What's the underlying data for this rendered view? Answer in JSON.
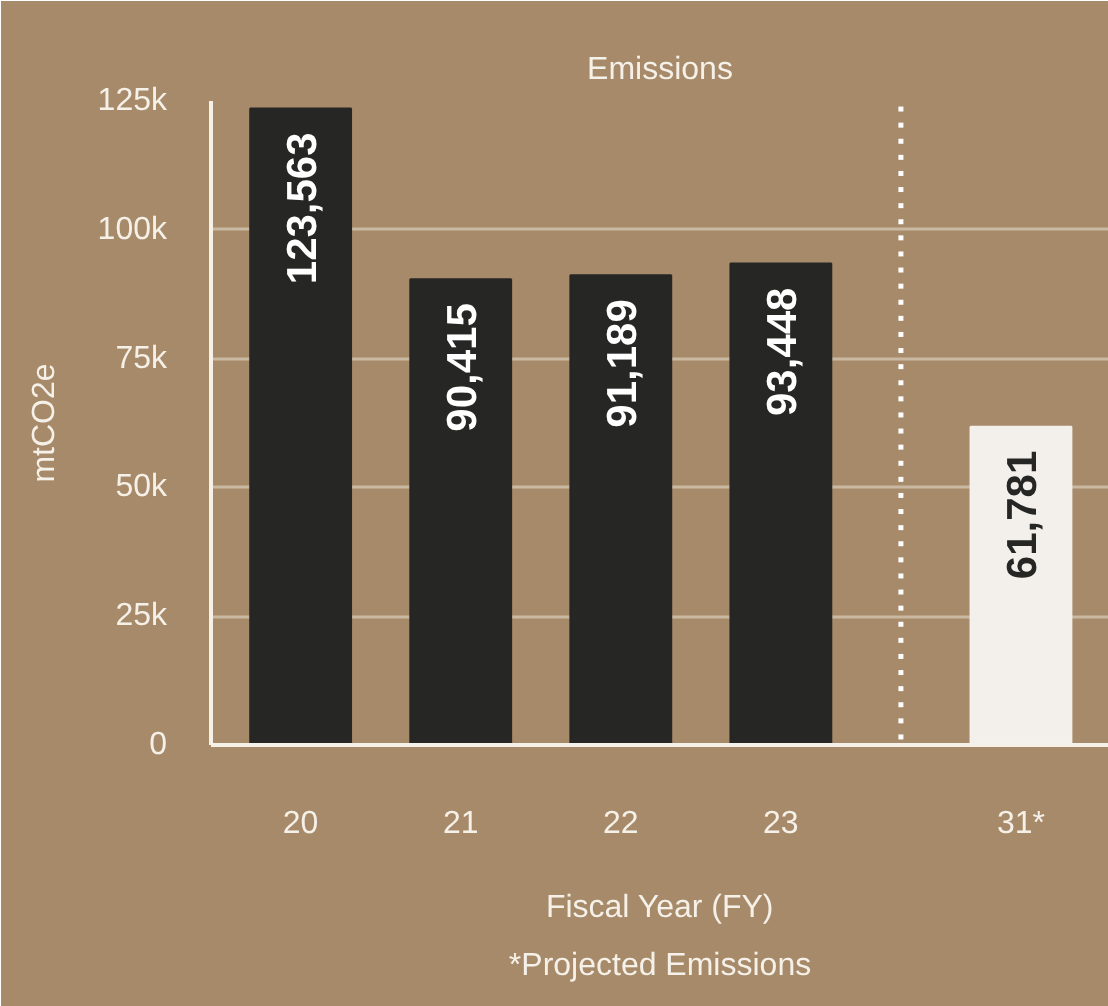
{
  "chart_data": {
    "type": "bar",
    "title": "Emissions",
    "xlabel": "Fiscal Year (FY)",
    "ylabel": "mtCO2e",
    "categories": [
      "20",
      "21",
      "22",
      "23",
      "31*"
    ],
    "values": [
      123563,
      90415,
      91189,
      93448,
      61781
    ],
    "value_labels": [
      "123,563",
      "90,415",
      "91,189",
      "93,448",
      "61,781"
    ],
    "colors": [
      "#262624",
      "#262624",
      "#262624",
      "#262624",
      "#f3f0ec"
    ],
    "ylim": [
      0,
      125000
    ],
    "yticks": [
      0,
      {
        "value": 25000,
        "label": "25k"
      },
      {
        "value": 50000,
        "label": "50k"
      },
      {
        "value": 75000,
        "label": "75k"
      },
      {
        "value": 100000,
        "label": "100k"
      },
      {
        "value": 125000,
        "label": "125k"
      }
    ],
    "grid": "y",
    "annotations": [
      "*Projected Emissions"
    ]
  }
}
